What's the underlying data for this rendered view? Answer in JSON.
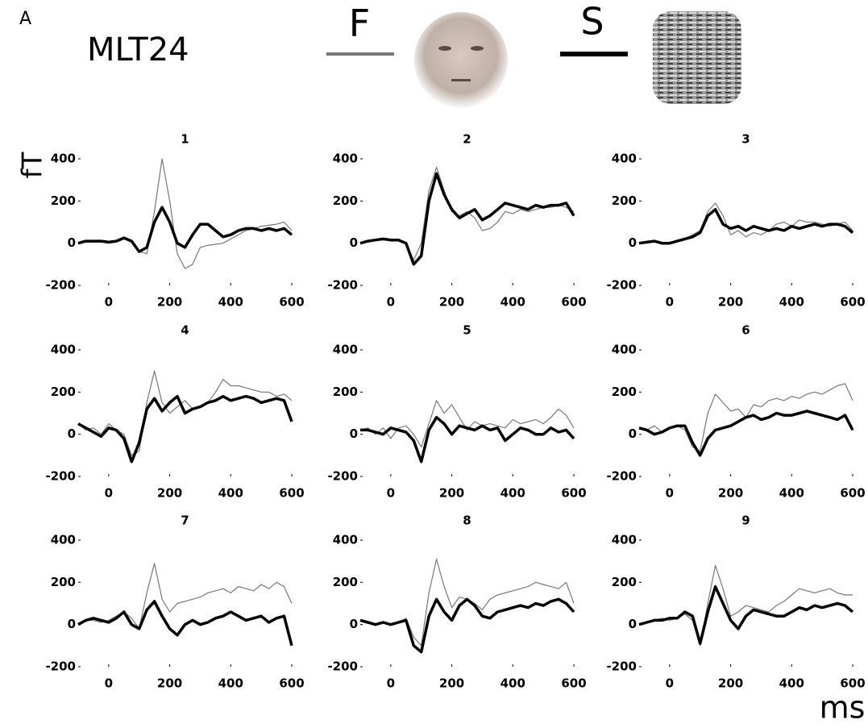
{
  "panel_label": "A",
  "title": "MLT24",
  "y_label": "fT",
  "x_label": "ms",
  "chart_data": [
    {
      "type": "line",
      "title": "1",
      "x": [
        -100,
        -75,
        -50,
        -25,
        0,
        25,
        50,
        75,
        100,
        125,
        150,
        175,
        200,
        225,
        250,
        275,
        300,
        325,
        350,
        375,
        400,
        425,
        450,
        475,
        500,
        525,
        550,
        575,
        600
      ],
      "xlim": [
        -100,
        600
      ],
      "ylim": [
        -200,
        400
      ],
      "xticks": [
        0,
        200,
        400,
        600
      ],
      "yticks": [
        -200,
        0,
        200,
        400
      ],
      "series": [
        {
          "name": "F",
          "color": "#777777",
          "linewidth": 1.2,
          "values": [
            0,
            10,
            5,
            10,
            5,
            10,
            20,
            15,
            -40,
            -50,
            150,
            400,
            200,
            -50,
            -120,
            -100,
            -20,
            -10,
            -5,
            0,
            20,
            40,
            60,
            70,
            80,
            85,
            90,
            100,
            60
          ]
        },
        {
          "name": "S",
          "color": "#000000",
          "linewidth": 3.5,
          "values": [
            0,
            10,
            10,
            10,
            5,
            10,
            25,
            10,
            -40,
            -20,
            100,
            170,
            100,
            0,
            -20,
            40,
            90,
            90,
            60,
            30,
            40,
            60,
            70,
            70,
            60,
            70,
            60,
            70,
            40
          ]
        }
      ]
    },
    {
      "type": "line",
      "title": "2",
      "x": [
        -100,
        -75,
        -50,
        -25,
        0,
        25,
        50,
        75,
        100,
        125,
        150,
        175,
        200,
        225,
        250,
        275,
        300,
        325,
        350,
        375,
        400,
        425,
        450,
        475,
        500,
        525,
        550,
        575,
        600
      ],
      "xlim": [
        -100,
        600
      ],
      "ylim": [
        -200,
        400
      ],
      "xticks": [
        0,
        200,
        400,
        600
      ],
      "yticks": [
        -200,
        0,
        200,
        400
      ],
      "series": [
        {
          "name": "F",
          "color": "#777777",
          "linewidth": 1.2,
          "values": [
            0,
            10,
            15,
            20,
            10,
            20,
            0,
            -80,
            0,
            250,
            360,
            250,
            150,
            130,
            150,
            120,
            60,
            70,
            100,
            150,
            140,
            160,
            150,
            160,
            170,
            170,
            180,
            170,
            150
          ]
        },
        {
          "name": "S",
          "color": "#000000",
          "linewidth": 3.5,
          "values": [
            0,
            10,
            15,
            20,
            15,
            15,
            0,
            -100,
            -60,
            200,
            330,
            230,
            160,
            120,
            140,
            160,
            110,
            130,
            160,
            190,
            180,
            170,
            160,
            180,
            170,
            180,
            180,
            190,
            130
          ]
        }
      ]
    },
    {
      "type": "line",
      "title": "3",
      "x": [
        -100,
        -75,
        -50,
        -25,
        0,
        25,
        50,
        75,
        100,
        125,
        150,
        175,
        200,
        225,
        250,
        275,
        300,
        325,
        350,
        375,
        400,
        425,
        450,
        475,
        500,
        525,
        550,
        575,
        600
      ],
      "xlim": [
        -100,
        600
      ],
      "ylim": [
        -200,
        400
      ],
      "xticks": [
        0,
        200,
        400,
        600
      ],
      "yticks": [
        -200,
        0,
        200,
        400
      ],
      "series": [
        {
          "name": "F",
          "color": "#777777",
          "linewidth": 1.2,
          "values": [
            0,
            5,
            10,
            0,
            0,
            10,
            20,
            40,
            60,
            150,
            190,
            130,
            40,
            60,
            30,
            50,
            40,
            60,
            90,
            100,
            80,
            110,
            100,
            100,
            90,
            80,
            90,
            100,
            60
          ]
        },
        {
          "name": "S",
          "color": "#000000",
          "linewidth": 3.5,
          "values": [
            0,
            5,
            10,
            0,
            0,
            10,
            20,
            30,
            50,
            130,
            160,
            90,
            70,
            80,
            60,
            80,
            70,
            60,
            70,
            60,
            80,
            70,
            80,
            90,
            80,
            90,
            90,
            80,
            50
          ]
        }
      ]
    },
    {
      "type": "line",
      "title": "4",
      "x": [
        -100,
        -75,
        -50,
        -25,
        0,
        25,
        50,
        75,
        100,
        125,
        150,
        175,
        200,
        225,
        250,
        275,
        300,
        325,
        350,
        375,
        400,
        425,
        450,
        475,
        500,
        525,
        550,
        575,
        600
      ],
      "xlim": [
        -100,
        600
      ],
      "ylim": [
        -200,
        400
      ],
      "xticks": [
        0,
        200,
        400,
        600
      ],
      "yticks": [
        -200,
        0,
        200,
        400
      ],
      "series": [
        {
          "name": "F",
          "color": "#777777",
          "linewidth": 1.2,
          "values": [
            50,
            20,
            30,
            0,
            50,
            20,
            0,
            -100,
            -80,
            150,
            300,
            150,
            100,
            130,
            160,
            120,
            130,
            150,
            200,
            260,
            230,
            230,
            220,
            210,
            200,
            200,
            180,
            190,
            160
          ]
        },
        {
          "name": "S",
          "color": "#000000",
          "linewidth": 3.5,
          "values": [
            50,
            30,
            10,
            -10,
            30,
            20,
            -20,
            -130,
            -40,
            120,
            170,
            110,
            150,
            180,
            100,
            120,
            130,
            150,
            160,
            180,
            160,
            170,
            180,
            170,
            150,
            160,
            170,
            160,
            60
          ]
        }
      ]
    },
    {
      "type": "line",
      "title": "5",
      "x": [
        -100,
        -75,
        -50,
        -25,
        0,
        25,
        50,
        75,
        100,
        125,
        150,
        175,
        200,
        225,
        250,
        275,
        300,
        325,
        350,
        375,
        400,
        425,
        450,
        475,
        500,
        525,
        550,
        575,
        600
      ],
      "xlim": [
        -100,
        600
      ],
      "ylim": [
        -200,
        400
      ],
      "xticks": [
        0,
        200,
        400,
        600
      ],
      "yticks": [
        -200,
        0,
        200,
        400
      ],
      "series": [
        {
          "name": "F",
          "color": "#777777",
          "linewidth": 1.2,
          "values": [
            20,
            30,
            0,
            30,
            -20,
            30,
            40,
            0,
            -60,
            50,
            160,
            100,
            140,
            80,
            20,
            60,
            40,
            50,
            40,
            30,
            70,
            50,
            60,
            70,
            50,
            80,
            120,
            90,
            30
          ]
        },
        {
          "name": "S",
          "color": "#000000",
          "linewidth": 3.5,
          "values": [
            20,
            20,
            10,
            0,
            30,
            20,
            10,
            -30,
            -130,
            20,
            80,
            50,
            0,
            40,
            30,
            20,
            40,
            20,
            30,
            -30,
            0,
            30,
            20,
            0,
            0,
            30,
            10,
            20,
            -20
          ]
        }
      ]
    },
    {
      "type": "line",
      "title": "6",
      "x": [
        -100,
        -75,
        -50,
        -25,
        0,
        25,
        50,
        75,
        100,
        125,
        150,
        175,
        200,
        225,
        250,
        275,
        300,
        325,
        350,
        375,
        400,
        425,
        450,
        475,
        500,
        525,
        550,
        575,
        600
      ],
      "xlim": [
        -100,
        600
      ],
      "ylim": [
        -200,
        400
      ],
      "xticks": [
        0,
        200,
        400,
        600
      ],
      "yticks": [
        -200,
        0,
        200,
        400
      ],
      "series": [
        {
          "name": "F",
          "color": "#777777",
          "linewidth": 1.2,
          "values": [
            30,
            20,
            40,
            10,
            30,
            40,
            20,
            -60,
            -80,
            100,
            190,
            150,
            110,
            120,
            80,
            140,
            130,
            160,
            170,
            160,
            180,
            170,
            190,
            200,
            190,
            210,
            230,
            240,
            160
          ]
        },
        {
          "name": "S",
          "color": "#000000",
          "linewidth": 3.5,
          "values": [
            30,
            20,
            0,
            10,
            30,
            40,
            40,
            -40,
            -100,
            -20,
            20,
            30,
            40,
            60,
            80,
            90,
            70,
            80,
            100,
            90,
            90,
            100,
            110,
            100,
            90,
            80,
            70,
            90,
            20
          ]
        }
      ]
    },
    {
      "type": "line",
      "title": "7",
      "x": [
        -100,
        -75,
        -50,
        -25,
        0,
        25,
        50,
        75,
        100,
        125,
        150,
        175,
        200,
        225,
        250,
        275,
        300,
        325,
        350,
        375,
        400,
        425,
        450,
        475,
        500,
        525,
        550,
        575,
        600
      ],
      "xlim": [
        -100,
        600
      ],
      "ylim": [
        -200,
        400
      ],
      "xticks": [
        0,
        200,
        400,
        600
      ],
      "yticks": [
        -200,
        0,
        200,
        400
      ],
      "series": [
        {
          "name": "F",
          "color": "#777777",
          "linewidth": 1.2,
          "values": [
            0,
            20,
            20,
            10,
            20,
            40,
            60,
            30,
            -20,
            150,
            290,
            120,
            60,
            100,
            110,
            120,
            130,
            150,
            160,
            170,
            150,
            180,
            170,
            160,
            190,
            170,
            200,
            180,
            100
          ]
        },
        {
          "name": "S",
          "color": "#000000",
          "linewidth": 3.5,
          "values": [
            0,
            20,
            30,
            20,
            10,
            30,
            60,
            0,
            -20,
            70,
            110,
            40,
            -20,
            -50,
            0,
            20,
            0,
            10,
            30,
            40,
            60,
            40,
            20,
            30,
            40,
            10,
            30,
            40,
            -100
          ]
        }
      ]
    },
    {
      "type": "line",
      "title": "8",
      "x": [
        -100,
        -75,
        -50,
        -25,
        0,
        25,
        50,
        75,
        100,
        125,
        150,
        175,
        200,
        225,
        250,
        275,
        300,
        325,
        350,
        375,
        400,
        425,
        450,
        475,
        500,
        525,
        550,
        575,
        600
      ],
      "xlim": [
        -100,
        600
      ],
      "ylim": [
        -200,
        400
      ],
      "xticks": [
        0,
        200,
        400,
        600
      ],
      "yticks": [
        -200,
        0,
        200,
        400
      ],
      "series": [
        {
          "name": "F",
          "color": "#777777",
          "linewidth": 1.2,
          "values": [
            20,
            10,
            0,
            10,
            0,
            10,
            30,
            -60,
            -100,
            150,
            310,
            180,
            80,
            130,
            120,
            100,
            70,
            120,
            140,
            150,
            160,
            170,
            180,
            200,
            190,
            180,
            170,
            200,
            100
          ]
        },
        {
          "name": "S",
          "color": "#000000",
          "linewidth": 3.5,
          "values": [
            20,
            10,
            0,
            10,
            0,
            10,
            20,
            -100,
            -130,
            40,
            120,
            60,
            20,
            90,
            120,
            90,
            40,
            30,
            60,
            70,
            80,
            90,
            80,
            100,
            90,
            110,
            120,
            100,
            60
          ]
        }
      ]
    },
    {
      "type": "line",
      "title": "9",
      "x": [
        -100,
        -75,
        -50,
        -25,
        0,
        25,
        50,
        75,
        100,
        125,
        150,
        175,
        200,
        225,
        250,
        275,
        300,
        325,
        350,
        375,
        400,
        425,
        450,
        475,
        500,
        525,
        550,
        575,
        600
      ],
      "xlim": [
        -100,
        600
      ],
      "ylim": [
        -200,
        400
      ],
      "xticks": [
        0,
        200,
        400,
        600
      ],
      "yticks": [
        -200,
        0,
        200,
        400
      ],
      "series": [
        {
          "name": "F",
          "color": "#777777",
          "linewidth": 1.2,
          "values": [
            0,
            10,
            20,
            30,
            20,
            30,
            50,
            20,
            -100,
            100,
            280,
            170,
            40,
            60,
            90,
            80,
            70,
            60,
            90,
            110,
            140,
            170,
            160,
            150,
            160,
            170,
            150,
            140,
            140
          ]
        },
        {
          "name": "S",
          "color": "#000000",
          "linewidth": 3.5,
          "values": [
            0,
            10,
            20,
            20,
            30,
            30,
            60,
            40,
            -90,
            60,
            180,
            100,
            20,
            -20,
            40,
            70,
            60,
            50,
            40,
            40,
            60,
            80,
            70,
            90,
            80,
            90,
            100,
            90,
            60
          ]
        }
      ]
    }
  ]
}
